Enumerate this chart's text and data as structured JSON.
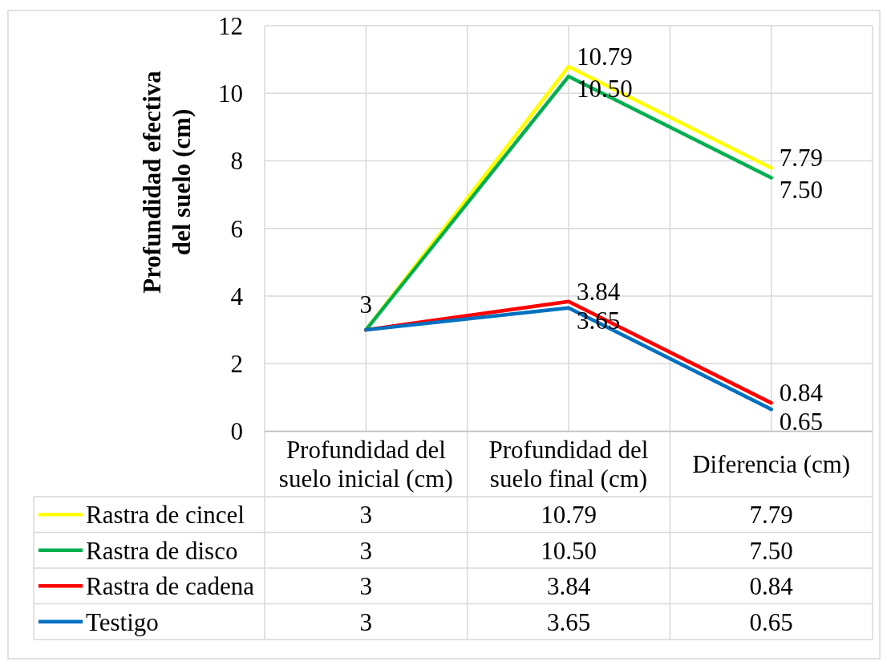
{
  "chart_data": {
    "type": "line",
    "ylabel": "Profundidad efectiva del suelo (cm)",
    "categories": [
      "Profundidad del suelo inicial (cm)",
      "Profundidad del suelo final (cm)",
      "Diferencia (cm)"
    ],
    "series": [
      {
        "name": "Rastra de cincel",
        "color": "#ffff00",
        "values": [
          3,
          10.79,
          7.79
        ],
        "value_labels": [
          "3",
          "10.79",
          "7.79"
        ]
      },
      {
        "name": "Rastra de disco",
        "color": "#00b050",
        "values": [
          3,
          10.5,
          7.5
        ],
        "value_labels": [
          "3",
          "10.50",
          "7.50"
        ]
      },
      {
        "name": "Rastra de cadena",
        "color": "#ff0000",
        "values": [
          3,
          3.84,
          0.84
        ],
        "value_labels": [
          "3",
          "3.84",
          "0.84"
        ]
      },
      {
        "name": "Testigo",
        "color": "#0070c0",
        "values": [
          3,
          3.65,
          0.65
        ],
        "value_labels": [
          "3",
          "3.65",
          "0.65"
        ]
      }
    ],
    "ylim": [
      0,
      12
    ],
    "yticks": [
      0,
      2,
      4,
      6,
      8,
      10,
      12
    ],
    "grid": true,
    "legend": "bottom"
  }
}
